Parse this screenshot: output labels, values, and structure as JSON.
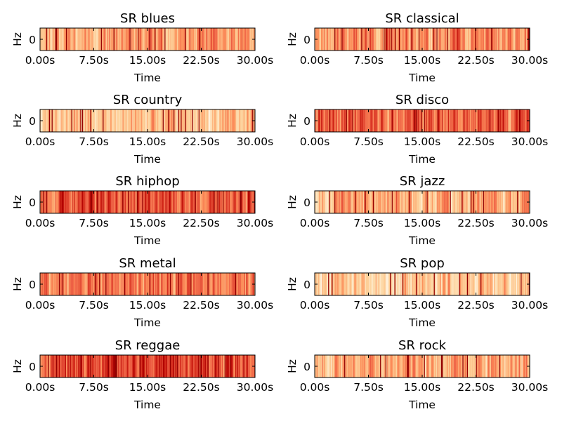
{
  "chart_data": [
    {
      "type": "heatmap",
      "title": "SR blues",
      "xlabel": "Time",
      "ylabel": "Hz",
      "x_ticks": [
        "0.00s",
        "7.50s",
        "15.00s",
        "22.50s",
        "30.00s"
      ],
      "y_ticks": [
        "0"
      ],
      "xlim": [
        0,
        30
      ],
      "colormap": "OrRd",
      "base_intensity": 0.45,
      "intensity_spread": 0.3,
      "seed": 11
    },
    {
      "type": "heatmap",
      "title": "SR classical",
      "xlabel": "Time",
      "ylabel": "Hz",
      "x_ticks": [
        "0.00s",
        "7.50s",
        "15.00s",
        "22.50s",
        "30.00s"
      ],
      "y_ticks": [
        "0"
      ],
      "xlim": [
        0,
        30
      ],
      "colormap": "OrRd",
      "base_intensity": 0.5,
      "intensity_spread": 0.32,
      "seed": 23
    },
    {
      "type": "heatmap",
      "title": "SR country",
      "xlabel": "Time",
      "ylabel": "Hz",
      "x_ticks": [
        "0.00s",
        "7.50s",
        "15.00s",
        "22.50s",
        "30.00s"
      ],
      "y_ticks": [
        "0"
      ],
      "xlim": [
        0,
        30
      ],
      "colormap": "OrRd",
      "base_intensity": 0.32,
      "intensity_spread": 0.3,
      "seed": 37
    },
    {
      "type": "heatmap",
      "title": "SR disco",
      "xlabel": "Time",
      "ylabel": "Hz",
      "x_ticks": [
        "0.00s",
        "7.50s",
        "15.00s",
        "22.50s",
        "30.00s"
      ],
      "y_ticks": [
        "0"
      ],
      "xlim": [
        0,
        30
      ],
      "colormap": "OrRd",
      "base_intensity": 0.62,
      "intensity_spread": 0.28,
      "seed": 41
    },
    {
      "type": "heatmap",
      "title": "SR hiphop",
      "xlabel": "Time",
      "ylabel": "Hz",
      "x_ticks": [
        "0.00s",
        "7.50s",
        "15.00s",
        "22.50s",
        "30.00s"
      ],
      "y_ticks": [
        "0"
      ],
      "xlim": [
        0,
        30
      ],
      "colormap": "OrRd",
      "base_intensity": 0.66,
      "intensity_spread": 0.28,
      "seed": 53
    },
    {
      "type": "heatmap",
      "title": "SR jazz",
      "xlabel": "Time",
      "ylabel": "Hz",
      "x_ticks": [
        "0.00s",
        "7.50s",
        "15.00s",
        "22.50s",
        "30.00s"
      ],
      "y_ticks": [
        "0"
      ],
      "xlim": [
        0,
        30
      ],
      "colormap": "OrRd",
      "base_intensity": 0.4,
      "intensity_spread": 0.32,
      "seed": 67
    },
    {
      "type": "heatmap",
      "title": "SR metal",
      "xlabel": "Time",
      "ylabel": "Hz",
      "x_ticks": [
        "0.00s",
        "7.50s",
        "15.00s",
        "22.50s",
        "30.00s"
      ],
      "y_ticks": [
        "0"
      ],
      "xlim": [
        0,
        30
      ],
      "colormap": "OrRd",
      "base_intensity": 0.55,
      "intensity_spread": 0.22,
      "seed": 71
    },
    {
      "type": "heatmap",
      "title": "SR pop",
      "xlabel": "Time",
      "ylabel": "Hz",
      "x_ticks": [
        "0.00s",
        "7.50s",
        "15.00s",
        "22.50s",
        "30.00s"
      ],
      "y_ticks": [
        "0"
      ],
      "xlim": [
        0,
        30
      ],
      "colormap": "OrRd",
      "base_intensity": 0.3,
      "intensity_spread": 0.3,
      "seed": 83
    },
    {
      "type": "heatmap",
      "title": "SR reggae",
      "xlabel": "Time",
      "ylabel": "Hz",
      "x_ticks": [
        "0.00s",
        "7.50s",
        "15.00s",
        "22.50s",
        "30.00s"
      ],
      "y_ticks": [
        "0"
      ],
      "xlim": [
        0,
        30
      ],
      "colormap": "OrRd",
      "base_intensity": 0.68,
      "intensity_spread": 0.28,
      "seed": 97
    },
    {
      "type": "heatmap",
      "title": "SR rock",
      "xlabel": "Time",
      "ylabel": "Hz",
      "x_ticks": [
        "0.00s",
        "7.50s",
        "15.00s",
        "22.50s",
        "30.00s"
      ],
      "y_ticks": [
        "0"
      ],
      "xlim": [
        0,
        30
      ],
      "colormap": "OrRd",
      "base_intensity": 0.42,
      "intensity_spread": 0.3,
      "seed": 101
    }
  ]
}
